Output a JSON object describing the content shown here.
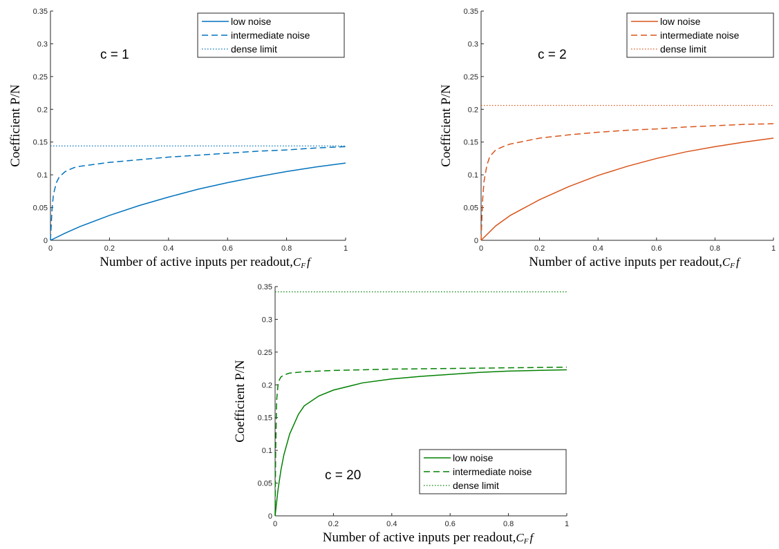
{
  "chart_data": [
    {
      "type": "line",
      "annotation": "c = 1",
      "xlabel_text": "Number of active inputs per readout,",
      "xlabel_math": "C",
      "xlabel_sub": "F",
      "xlabel_tail": "f",
      "ylabel": "Coefficient P/N",
      "xlim": [
        0,
        1
      ],
      "ylim": [
        0,
        0.35
      ],
      "xticks": [
        "0",
        "0.2",
        "0.4",
        "0.6",
        "0.8",
        "1"
      ],
      "yticks": [
        "0",
        "0.05",
        "0.1",
        "0.15",
        "0.2",
        "0.25",
        "0.3",
        "0.35"
      ],
      "color": "#0072BD",
      "legend_position": "top-right",
      "series": [
        {
          "name": "low noise",
          "style": "solid",
          "x": [
            0,
            0.05,
            0.1,
            0.2,
            0.3,
            0.4,
            0.5,
            0.6,
            0.7,
            0.8,
            0.9,
            1.0
          ],
          "y": [
            0,
            0.011,
            0.021,
            0.038,
            0.053,
            0.066,
            0.078,
            0.088,
            0.097,
            0.105,
            0.112,
            0.118
          ]
        },
        {
          "name": "intermediate noise",
          "style": "dashed",
          "x": [
            0,
            0.005,
            0.01,
            0.02,
            0.03,
            0.05,
            0.08,
            0.1,
            0.2,
            0.3,
            0.4,
            0.5,
            0.6,
            0.7,
            0.8,
            0.9,
            1.0
          ],
          "y": [
            0,
            0.045,
            0.07,
            0.088,
            0.097,
            0.105,
            0.111,
            0.113,
            0.119,
            0.123,
            0.127,
            0.13,
            0.133,
            0.136,
            0.138,
            0.141,
            0.143
          ]
        },
        {
          "name": "dense limit",
          "style": "dotted",
          "x": [
            0,
            1
          ],
          "y": [
            0.144,
            0.144
          ]
        }
      ]
    },
    {
      "type": "line",
      "annotation": "c = 2",
      "xlabel_text": "Number of active inputs per readout,",
      "xlabel_math": "C",
      "xlabel_sub": "F",
      "xlabel_tail": "f",
      "ylabel": "Coefficient P/N",
      "xlim": [
        0,
        1
      ],
      "ylim": [
        0,
        0.35
      ],
      "xticks": [
        "0",
        "0.2",
        "0.4",
        "0.6",
        "0.8",
        "1"
      ],
      "yticks": [
        "0",
        "0.05",
        "0.1",
        "0.15",
        "0.2",
        "0.25",
        "0.3",
        "0.35"
      ],
      "color": "#D95319",
      "legend_position": "top-right",
      "series": [
        {
          "name": "low noise",
          "style": "solid",
          "x": [
            0,
            0.05,
            0.1,
            0.2,
            0.3,
            0.4,
            0.5,
            0.6,
            0.7,
            0.8,
            0.9,
            1.0
          ],
          "y": [
            0,
            0.022,
            0.038,
            0.062,
            0.082,
            0.099,
            0.113,
            0.125,
            0.135,
            0.143,
            0.15,
            0.156
          ]
        },
        {
          "name": "intermediate noise",
          "style": "dashed",
          "x": [
            0,
            0.005,
            0.01,
            0.02,
            0.03,
            0.05,
            0.08,
            0.1,
            0.2,
            0.3,
            0.4,
            0.5,
            0.6,
            0.7,
            0.8,
            0.9,
            1.0
          ],
          "y": [
            0,
            0.06,
            0.09,
            0.115,
            0.128,
            0.138,
            0.144,
            0.147,
            0.156,
            0.161,
            0.165,
            0.168,
            0.17,
            0.173,
            0.175,
            0.177,
            0.178
          ]
        },
        {
          "name": "dense limit",
          "style": "dotted",
          "x": [
            0,
            1
          ],
          "y": [
            0.206,
            0.206
          ]
        }
      ]
    },
    {
      "type": "line",
      "annotation": "c = 20",
      "xlabel_text": "Number of active inputs per readout,",
      "xlabel_math": "C",
      "xlabel_sub": "F",
      "xlabel_tail": "f",
      "ylabel": "Coefficient P/N",
      "xlim": [
        0,
        1
      ],
      "ylim": [
        0,
        0.35
      ],
      "xticks": [
        "0",
        "0.2",
        "0.4",
        "0.6",
        "0.8",
        "1"
      ],
      "yticks": [
        "0",
        "0.05",
        "0.1",
        "0.15",
        "0.2",
        "0.25",
        "0.3",
        "0.35"
      ],
      "color": "#008000",
      "legend_position": "bottom-right",
      "series": [
        {
          "name": "low noise",
          "style": "solid",
          "x": [
            0,
            0.01,
            0.02,
            0.03,
            0.05,
            0.08,
            0.1,
            0.15,
            0.2,
            0.3,
            0.4,
            0.5,
            0.6,
            0.7,
            0.8,
            0.9,
            1.0
          ],
          "y": [
            0,
            0.04,
            0.07,
            0.093,
            0.125,
            0.155,
            0.168,
            0.183,
            0.192,
            0.203,
            0.209,
            0.213,
            0.216,
            0.219,
            0.221,
            0.222,
            0.223
          ]
        },
        {
          "name": "intermediate noise",
          "style": "dashed",
          "x": [
            0,
            0.002,
            0.005,
            0.01,
            0.015,
            0.02,
            0.03,
            0.05,
            0.1,
            0.2,
            0.4,
            0.6,
            0.8,
            1.0
          ],
          "y": [
            0,
            0.1,
            0.175,
            0.2,
            0.208,
            0.212,
            0.215,
            0.218,
            0.22,
            0.222,
            0.224,
            0.225,
            0.226,
            0.227
          ]
        },
        {
          "name": "dense limit",
          "style": "dotted",
          "x": [
            0,
            1
          ],
          "y": [
            0.342,
            0.342
          ]
        }
      ]
    }
  ]
}
